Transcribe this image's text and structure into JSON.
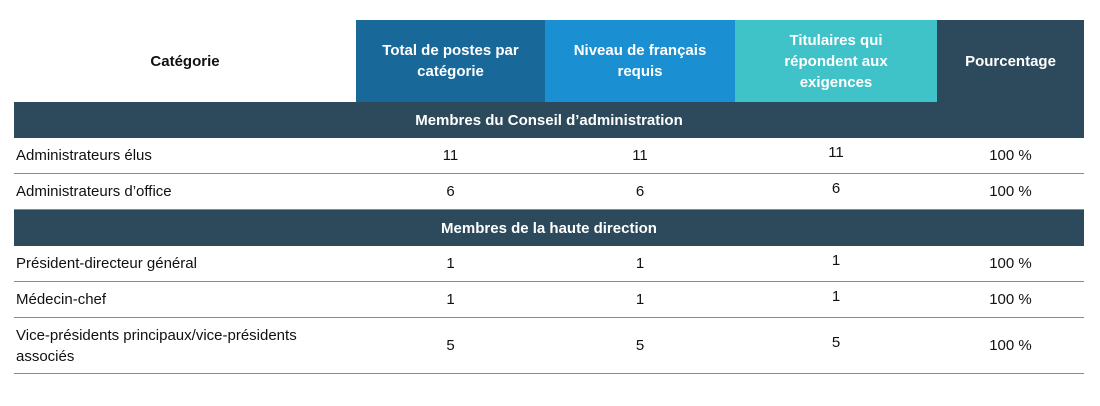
{
  "table": {
    "columns": [
      "Catégorie",
      "Total de postes par catégorie",
      "Niveau de français requis",
      "Titulaires qui répondent aux exigences",
      "Pourcentage"
    ],
    "sections": [
      {
        "title": "Membres du Conseil d’administration",
        "rows": [
          [
            "Administrateurs élus",
            11,
            11,
            11,
            "100 %"
          ],
          [
            "Administrateurs d’office",
            6,
            6,
            6,
            "100 %"
          ]
        ]
      },
      {
        "title": "Membres de la haute direction",
        "rows": [
          [
            "Président-directeur général",
            1,
            1,
            1,
            "100 %"
          ],
          [
            "Médecin-chef",
            1,
            1,
            1,
            "100 %"
          ],
          [
            "Vice-présidents principaux/vice-présidents associés",
            5,
            5,
            5,
            "100 %"
          ]
        ]
      }
    ]
  }
}
